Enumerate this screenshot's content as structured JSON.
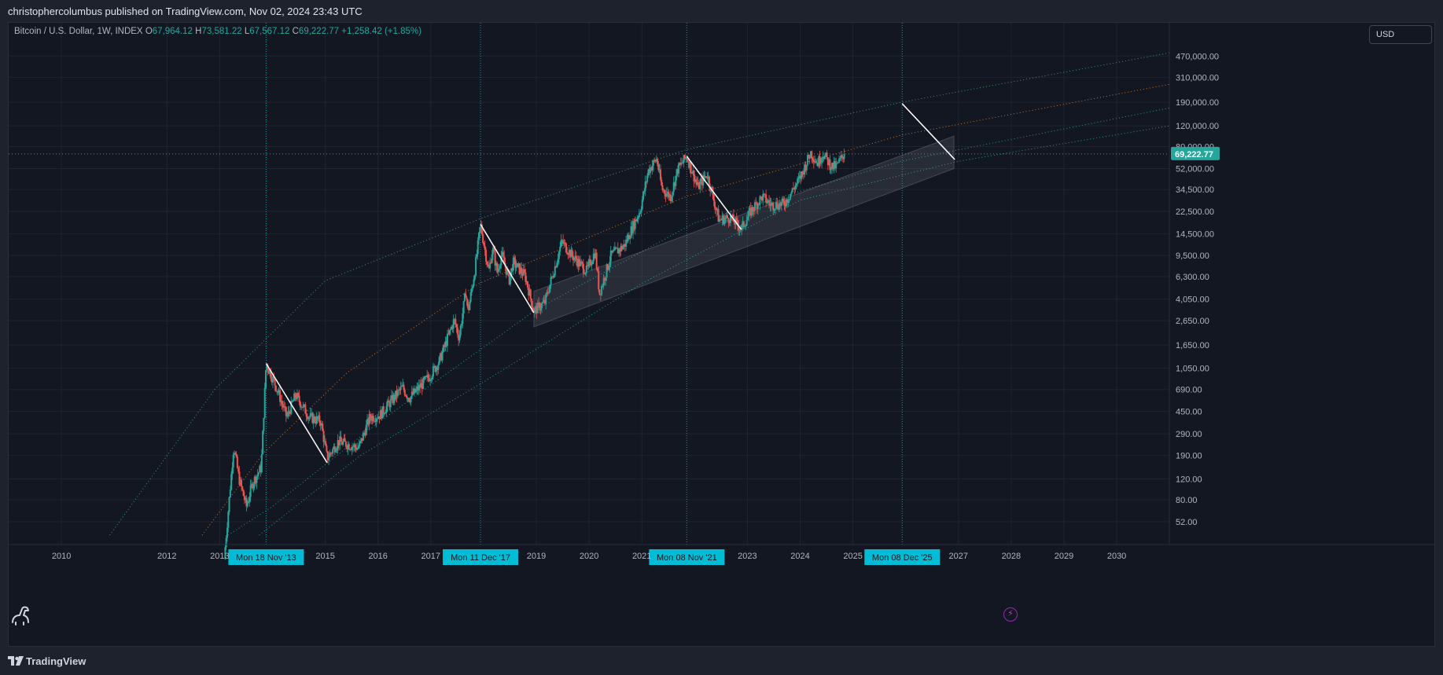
{
  "header": {
    "title": "christophercolumbus published on TradingView.com, Nov 02, 2024 23:43 UTC"
  },
  "legend": {
    "symbol": "Bitcoin / U.S. Dollar, 1W, INDEX",
    "open_label": "O",
    "open": "67,964.12",
    "high_label": "H",
    "high": "73,581.22",
    "low_label": "L",
    "low": "67,567.12",
    "close_label": "C",
    "close": "69,222.77",
    "change": "+1,258.42 (+1.85%)"
  },
  "currency_button": {
    "label": "USD"
  },
  "footer": {
    "brand": "TradingView"
  },
  "icons": {
    "logo": "tradingview-logo-icon",
    "dino": "dinosaur-icon",
    "flash": "lightning-icon"
  },
  "colors": {
    "background": "#131722",
    "up": "#26a69a",
    "down": "#ef5350",
    "marker": "#00bcd4",
    "grid": "#1f2430",
    "band_orange": "#e6892d",
    "band_green": "#4caf7a"
  },
  "chart_data": {
    "type": "candlestick",
    "y_scale": "log",
    "x_range": [
      "2009-01-01",
      "2030-12-31"
    ],
    "y_range": [
      40,
      900000
    ],
    "x_ticks": [
      "2010",
      "2012",
      "2013",
      "2015",
      "2016",
      "2017",
      "2019",
      "2020",
      "2021",
      "2023",
      "2024",
      "2025",
      "2027",
      "2028",
      "2029",
      "2030"
    ],
    "y_ticks": [
      {
        "value": 470000,
        "label": "470,000.00"
      },
      {
        "value": 310000,
        "label": "310,000.00"
      },
      {
        "value": 190000,
        "label": "190,000.00"
      },
      {
        "value": 120000,
        "label": "120,000.00"
      },
      {
        "value": 80000,
        "label": "80,000.00"
      },
      {
        "value": 52000,
        "label": "52,000.00"
      },
      {
        "value": 34500,
        "label": "34,500.00"
      },
      {
        "value": 22500,
        "label": "22,500.00"
      },
      {
        "value": 14500,
        "label": "14,500.00"
      },
      {
        "value": 9500,
        "label": "9,500.00"
      },
      {
        "value": 6300,
        "label": "6,300.00"
      },
      {
        "value": 4050,
        "label": "4,050.00"
      },
      {
        "value": 2650,
        "label": "2,650.00"
      },
      {
        "value": 1650,
        "label": "1,650.00"
      },
      {
        "value": 1050,
        "label": "1,050.00"
      },
      {
        "value": 690,
        "label": "690.00"
      },
      {
        "value": 450,
        "label": "450.00"
      },
      {
        "value": 290,
        "label": "290.00"
      },
      {
        "value": 190,
        "label": "190.00"
      },
      {
        "value": 120,
        "label": "120.00"
      },
      {
        "value": 80,
        "label": "80.00"
      },
      {
        "value": 52,
        "label": "52.00"
      }
    ],
    "last_price": {
      "value": 69222.77,
      "label": "69,222.77"
    },
    "markers": [
      {
        "date": "2013-11-18",
        "label": "Mon 18 Nov '13"
      },
      {
        "date": "2017-12-11",
        "label": "Mon 11 Dec '17"
      },
      {
        "date": "2021-11-08",
        "label": "Mon 08 Nov '21"
      },
      {
        "date": "2025-12-08",
        "label": "Mon 08 Dec '25"
      }
    ],
    "price_path": [
      [
        "2013-02-01",
        25
      ],
      [
        "2013-04-08",
        230
      ],
      [
        "2013-05-15",
        120
      ],
      [
        "2013-07-05",
        70
      ],
      [
        "2013-08-15",
        110
      ],
      [
        "2013-10-15",
        150
      ],
      [
        "2013-11-18",
        1150
      ],
      [
        "2014-02-01",
        700
      ],
      [
        "2014-04-10",
        400
      ],
      [
        "2014-06-10",
        620
      ],
      [
        "2014-09-15",
        400
      ],
      [
        "2014-12-01",
        370
      ],
      [
        "2015-01-14",
        180
      ],
      [
        "2015-04-01",
        250
      ],
      [
        "2015-08-20",
        220
      ],
      [
        "2015-11-05",
        400
      ],
      [
        "2016-01-15",
        420
      ],
      [
        "2016-06-18",
        720
      ],
      [
        "2016-08-05",
        580
      ],
      [
        "2016-12-25",
        900
      ],
      [
        "2017-03-01",
        1200
      ],
      [
        "2017-06-12",
        2700
      ],
      [
        "2017-07-16",
        1900
      ],
      [
        "2017-09-01",
        4800
      ],
      [
        "2017-09-15",
        3100
      ],
      [
        "2017-11-01",
        7000
      ],
      [
        "2017-12-11",
        17500
      ],
      [
        "2018-02-06",
        6900
      ],
      [
        "2018-03-05",
        11000
      ],
      [
        "2018-04-06",
        6800
      ],
      [
        "2018-05-05",
        9700
      ],
      [
        "2018-06-29",
        5900
      ],
      [
        "2018-07-24",
        8300
      ],
      [
        "2018-10-15",
        6400
      ],
      [
        "2018-12-15",
        3200
      ],
      [
        "2019-03-01",
        3800
      ],
      [
        "2019-05-15",
        8000
      ],
      [
        "2019-06-26",
        12500
      ],
      [
        "2019-09-01",
        9600
      ],
      [
        "2019-12-15",
        7000
      ],
      [
        "2020-02-12",
        10300
      ],
      [
        "2020-03-13",
        4500
      ],
      [
        "2020-06-01",
        9500
      ],
      [
        "2020-09-01",
        11500
      ],
      [
        "2020-12-20",
        23000
      ],
      [
        "2021-02-15",
        50000
      ],
      [
        "2021-04-14",
        63000
      ],
      [
        "2021-05-20",
        35000
      ],
      [
        "2021-07-20",
        30000
      ],
      [
        "2021-09-05",
        51000
      ],
      [
        "2021-11-08",
        66000
      ],
      [
        "2022-01-24",
        36000
      ],
      [
        "2022-03-28",
        47000
      ],
      [
        "2022-06-18",
        19000
      ],
      [
        "2022-09-01",
        20000
      ],
      [
        "2022-11-20",
        16000
      ],
      [
        "2023-01-30",
        23000
      ],
      [
        "2023-04-14",
        30000
      ],
      [
        "2023-06-15",
        25500
      ],
      [
        "2023-09-11",
        26000
      ],
      [
        "2023-12-31",
        43000
      ],
      [
        "2024-03-14",
        71000
      ],
      [
        "2024-05-01",
        58000
      ],
      [
        "2024-06-07",
        70000
      ],
      [
        "2024-08-05",
        54000
      ],
      [
        "2024-09-07",
        54000
      ],
      [
        "2024-11-02",
        69222.77
      ]
    ],
    "drawn_lines": [
      [
        [
          "2013-11-18",
          1150
        ],
        [
          "2015-01-14",
          165
        ]
      ],
      [
        [
          "2017-12-11",
          17500
        ],
        [
          "2018-12-15",
          3100
        ]
      ],
      [
        [
          "2021-11-08",
          66000
        ],
        [
          "2022-11-20",
          15800
        ]
      ],
      [
        [
          "2025-12-08",
          185000
        ],
        [
          "2026-12-07",
          62000
        ]
      ]
    ],
    "shaded_channel": {
      "x": [
        "2018-12-15",
        "2026-12-01"
      ],
      "upper": [
        4700,
        98000
      ],
      "lower": [
        2350,
        52000
      ]
    },
    "curves": [
      {
        "color": "#4caf7a",
        "points": [
          [
            "2010-12-01",
            40
          ],
          [
            "2012-12-01",
            700
          ],
          [
            "2015-01-01",
            5800
          ],
          [
            "2018-01-01",
            20000
          ],
          [
            "2021-11-01",
            75000
          ],
          [
            "2025-12-01",
            190000
          ],
          [
            "2030-12-31",
            500000
          ]
        ]
      },
      {
        "color": "#e6892d",
        "points": [
          [
            "2012-09-01",
            40
          ],
          [
            "2013-11-01",
            200
          ],
          [
            "2015-06-01",
            960
          ],
          [
            "2017-12-01",
            5500
          ],
          [
            "2021-11-01",
            30000
          ],
          [
            "2025-12-01",
            100000
          ],
          [
            "2030-12-31",
            270000
          ]
        ]
      },
      {
        "color": "#2bb1a0",
        "points": [
          [
            "2013-03-01",
            40
          ],
          [
            "2014-01-01",
            70
          ],
          [
            "2016-01-01",
            360
          ],
          [
            "2019-01-01",
            3300
          ],
          [
            "2022-01-01",
            18000
          ],
          [
            "2025-12-01",
            60000
          ],
          [
            "2030-12-31",
            170000
          ]
        ]
      },
      {
        "color": "#2bb1a0",
        "points": [
          [
            "2013-10-01",
            40
          ],
          [
            "2015-09-01",
            190
          ],
          [
            "2018-01-01",
            800
          ],
          [
            "2021-01-01",
            5500
          ],
          [
            "2024-01-01",
            28000
          ],
          [
            "2027-01-01",
            60000
          ],
          [
            "2030-12-31",
            120000
          ]
        ]
      }
    ]
  }
}
